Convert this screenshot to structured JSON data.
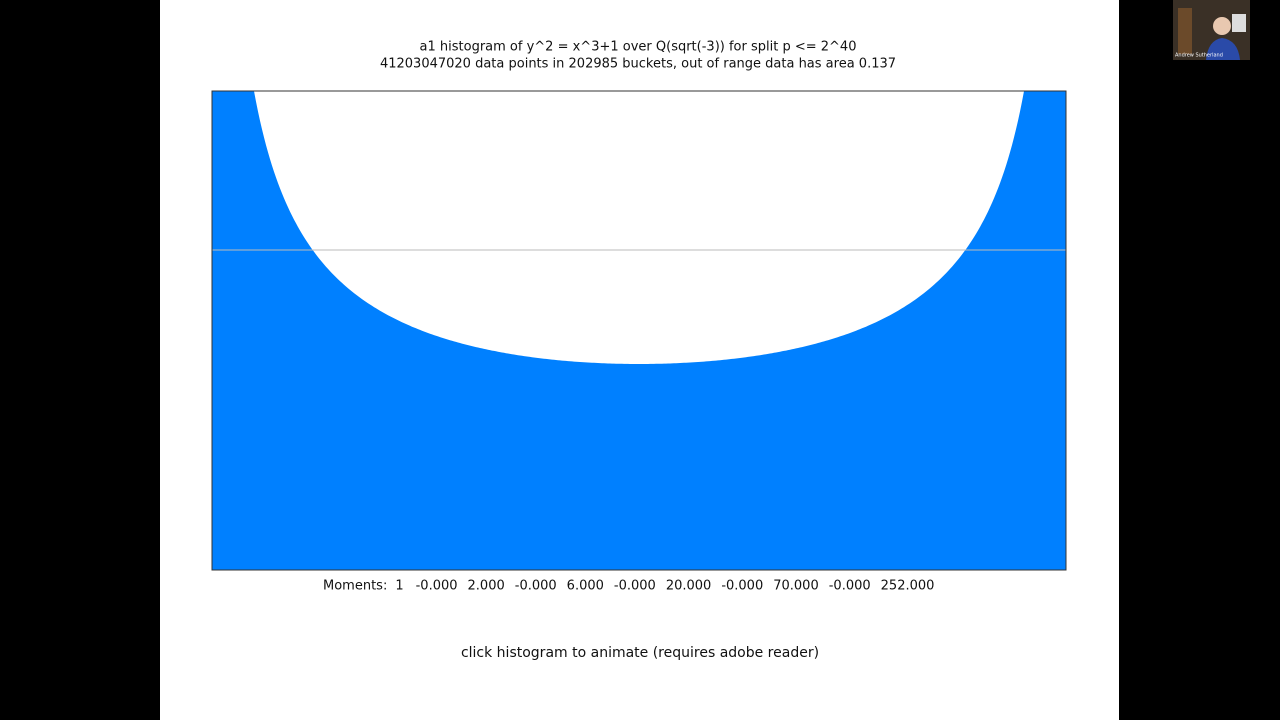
{
  "slide": {
    "title": "a1 histogram of y^2 = x^3+1 over Q(sqrt(-3)) for split p <= 2^40",
    "subtitle": "41203047020 data points in 202985 buckets, out of range data has area 0.137",
    "moments_label": "Moments:",
    "moments": [
      "1",
      "-0.000",
      "2.000",
      "-0.000",
      "6.000",
      "-0.000",
      "20.000",
      "-0.000",
      "70.000",
      "-0.000",
      "252.000"
    ],
    "footer": "click histogram to animate (requires adobe reader)"
  },
  "webcam": {
    "name": "Andrew Sutherland"
  }
}
